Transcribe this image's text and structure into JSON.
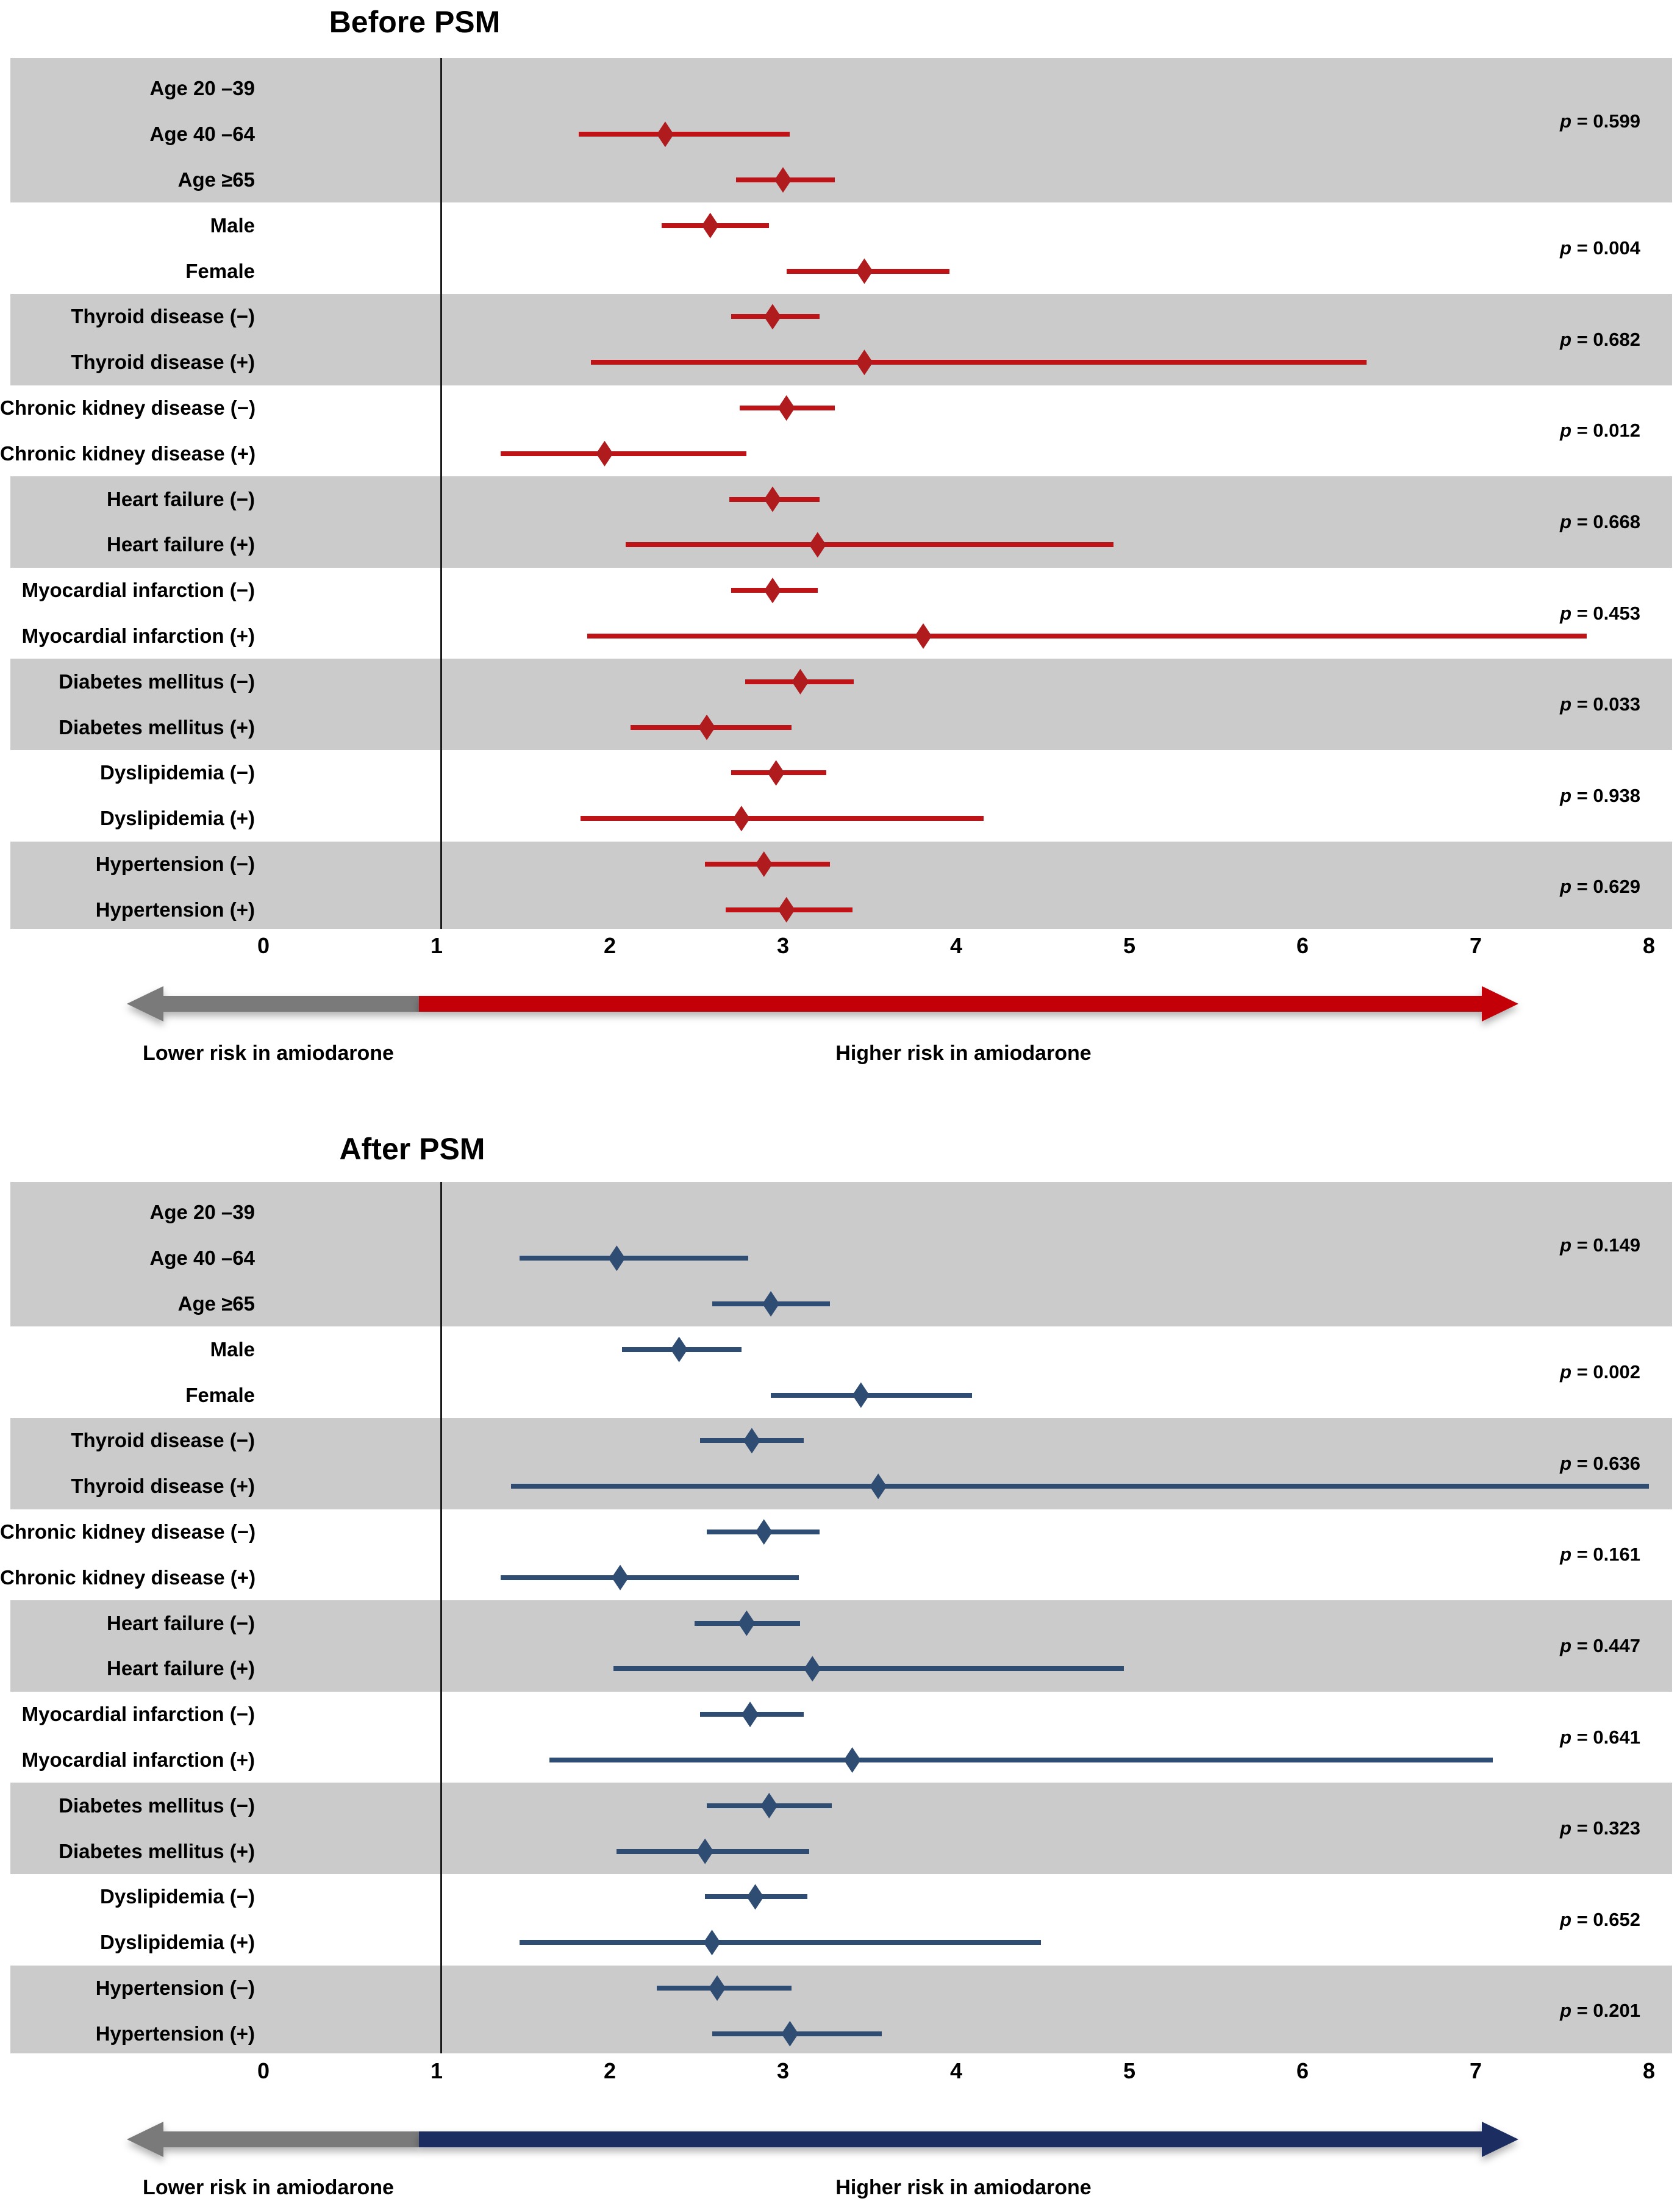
{
  "chart_data": [
    {
      "type": "forest",
      "title": "Before PSM",
      "x_axis": {
        "min": 0,
        "max": 8,
        "ticks": [
          0,
          1,
          2,
          3,
          4,
          5,
          6,
          7,
          8
        ],
        "reference_line_x": 1
      },
      "style": {
        "marker": "diamond",
        "marker_color": "#B01B1E",
        "line_color": "#BE1418",
        "band_color": "#CBCBCB",
        "alt_band_color": "#FFFFFF",
        "arrow_left_color": "#7A7A7A",
        "arrow_right_color": "#C30008"
      },
      "legend": {
        "left_arrow_label": "Lower risk in amiodarone",
        "right_arrow_label": "Higher risk in amiodarone"
      },
      "groups": [
        {
          "p_label": "p = 0.599",
          "rows": [
            {
              "label": "Age 20 –39",
              "est": null,
              "lo": null,
              "hi": null
            },
            {
              "label": "Age 40 –64",
              "est": 2.32,
              "lo": 1.82,
              "hi": 3.04
            },
            {
              "label": "Age ≥65",
              "est": 3.0,
              "lo": 2.73,
              "hi": 3.3
            }
          ]
        },
        {
          "p_label": "p = 0.004",
          "rows": [
            {
              "label": "Male",
              "est": 2.58,
              "lo": 2.3,
              "hi": 2.92
            },
            {
              "label": "Female",
              "est": 3.47,
              "lo": 3.02,
              "hi": 3.96
            }
          ]
        },
        {
          "p_label": "p = 0.682",
          "rows": [
            {
              "label": "Thyroid disease (−)",
              "est": 2.94,
              "lo": 2.7,
              "hi": 3.21
            },
            {
              "label": "Thyroid disease (+)",
              "est": 3.47,
              "lo": 1.89,
              "hi": 6.37
            }
          ]
        },
        {
          "p_label": "p = 0.012",
          "rows": [
            {
              "label": "Chronic kidney disease (−)",
              "est": 3.02,
              "lo": 2.75,
              "hi": 3.3
            },
            {
              "label": "Chronic kidney disease (+)",
              "est": 1.97,
              "lo": 1.37,
              "hi": 2.79
            }
          ]
        },
        {
          "p_label": "p = 0.668",
          "rows": [
            {
              "label": "Heart failure (−)",
              "est": 2.94,
              "lo": 2.69,
              "hi": 3.21
            },
            {
              "label": "Heart failure (+)",
              "est": 3.2,
              "lo": 2.09,
              "hi": 4.91
            }
          ]
        },
        {
          "p_label": "p = 0.453",
          "rows": [
            {
              "label": "Myocardial infarction (−)",
              "est": 2.94,
              "lo": 2.7,
              "hi": 3.2
            },
            {
              "label": "Myocardial infarction (+)",
              "est": 3.81,
              "lo": 1.87,
              "hi": 7.64
            }
          ]
        },
        {
          "p_label": "p = 0.033",
          "rows": [
            {
              "label": "Diabetes mellitus (−)",
              "est": 3.1,
              "lo": 2.78,
              "hi": 3.41
            },
            {
              "label": "Diabetes mellitus (+)",
              "est": 2.56,
              "lo": 2.12,
              "hi": 3.05
            }
          ]
        },
        {
          "p_label": "p = 0.938",
          "rows": [
            {
              "label": "Dyslipidemia (−)",
              "est": 2.96,
              "lo": 2.7,
              "hi": 3.25
            },
            {
              "label": "Dyslipidemia (+)",
              "est": 2.76,
              "lo": 1.83,
              "hi": 4.16
            }
          ]
        },
        {
          "p_label": "p = 0.629",
          "rows": [
            {
              "label": "Hypertension (−)",
              "est": 2.89,
              "lo": 2.55,
              "hi": 3.27
            },
            {
              "label": "Hypertension (+)",
              "est": 3.02,
              "lo": 2.67,
              "hi": 3.4
            }
          ]
        }
      ]
    },
    {
      "type": "forest",
      "title": "After PSM",
      "x_axis": {
        "min": 0,
        "max": 8,
        "ticks": [
          0,
          1,
          2,
          3,
          4,
          5,
          6,
          7,
          8
        ],
        "reference_line_x": 1
      },
      "style": {
        "marker": "diamond",
        "marker_color": "#2F4C72",
        "line_color": "#2F4C72",
        "band_color": "#CBCBCB",
        "alt_band_color": "#FFFFFF",
        "arrow_left_color": "#7A7A7A",
        "arrow_right_color": "#1B2D61"
      },
      "legend": {
        "left_arrow_label": "Lower risk in amiodarone",
        "right_arrow_label": "Higher risk in amiodarone"
      },
      "groups": [
        {
          "p_label": "p = 0.149",
          "rows": [
            {
              "label": "Age 20 –39",
              "est": null,
              "lo": null,
              "hi": null
            },
            {
              "label": "Age 40 –64",
              "est": 2.04,
              "lo": 1.48,
              "hi": 2.8
            },
            {
              "label": "Age ≥65",
              "est": 2.93,
              "lo": 2.59,
              "hi": 3.27
            }
          ]
        },
        {
          "p_label": "p = 0.002",
          "rows": [
            {
              "label": "Male",
              "est": 2.4,
              "lo": 2.07,
              "hi": 2.76
            },
            {
              "label": "Female",
              "est": 3.45,
              "lo": 2.93,
              "hi": 4.09
            }
          ]
        },
        {
          "p_label": "p = 0.636",
          "rows": [
            {
              "label": "Thyroid disease (−)",
              "est": 2.82,
              "lo": 2.52,
              "hi": 3.12
            },
            {
              "label": "Thyroid disease (+)",
              "est": 3.55,
              "lo": 1.43,
              "hi": 8.0
            }
          ]
        },
        {
          "p_label": "p = 0.161",
          "rows": [
            {
              "label": "Chronic kidney disease (−)",
              "est": 2.89,
              "lo": 2.56,
              "hi": 3.21
            },
            {
              "label": "Chronic kidney disease (+)",
              "est": 2.06,
              "lo": 1.37,
              "hi": 3.09
            }
          ]
        },
        {
          "p_label": "p = 0.447",
          "rows": [
            {
              "label": "Heart failure (−)",
              "est": 2.79,
              "lo": 2.49,
              "hi": 3.1
            },
            {
              "label": "Heart failure (+)",
              "est": 3.17,
              "lo": 2.02,
              "hi": 4.97
            }
          ]
        },
        {
          "p_label": "p = 0.641",
          "rows": [
            {
              "label": "Myocardial infarction (−)",
              "est": 2.81,
              "lo": 2.52,
              "hi": 3.12
            },
            {
              "label": "Myocardial infarction (+)",
              "est": 3.4,
              "lo": 1.65,
              "hi": 7.1
            }
          ]
        },
        {
          "p_label": "p = 0.323",
          "rows": [
            {
              "label": "Diabetes mellitus (−)",
              "est": 2.92,
              "lo": 2.56,
              "hi": 3.28
            },
            {
              "label": "Diabetes mellitus (+)",
              "est": 2.55,
              "lo": 2.04,
              "hi": 3.15
            }
          ]
        },
        {
          "p_label": "p = 0.652",
          "rows": [
            {
              "label": "Dyslipidemia (−)",
              "est": 2.84,
              "lo": 2.55,
              "hi": 3.14
            },
            {
              "label": "Dyslipidemia (+)",
              "est": 2.59,
              "lo": 1.48,
              "hi": 4.49
            }
          ]
        },
        {
          "p_label": "p = 0.201",
          "rows": [
            {
              "label": "Hypertension (−)",
              "est": 2.62,
              "lo": 2.27,
              "hi": 3.05
            },
            {
              "label": "Hypertension (+)",
              "est": 3.04,
              "lo": 2.59,
              "hi": 3.57
            }
          ]
        }
      ]
    }
  ]
}
